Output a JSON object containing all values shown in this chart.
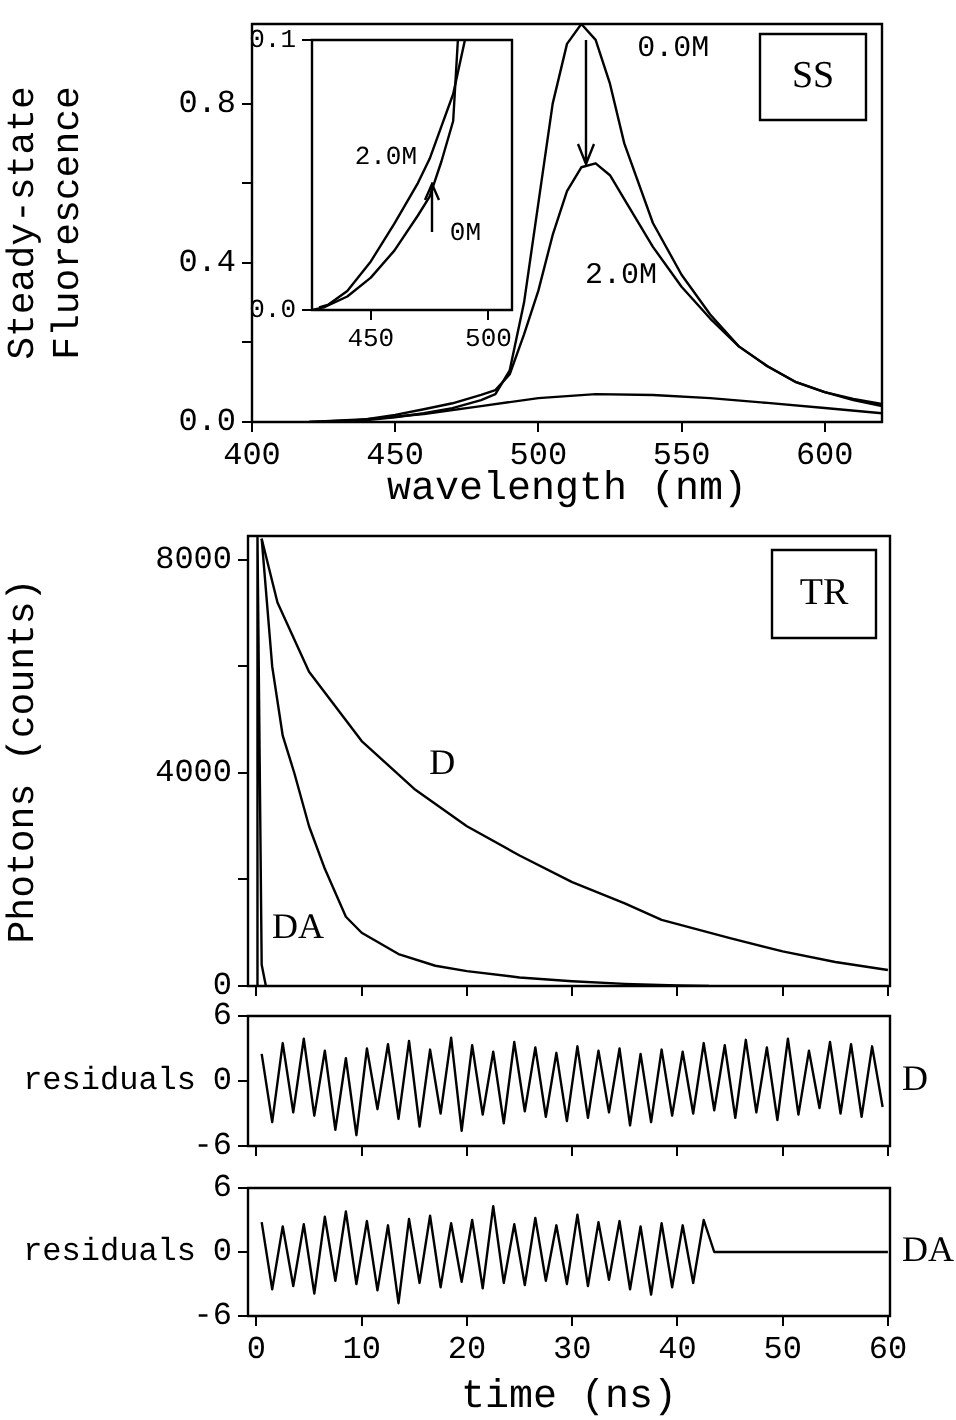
{
  "chart_data": [
    {
      "type": "line",
      "xlabel": "wavelength (nm)",
      "ylabel": "Steady-state Fluorescence",
      "xlim": [
        400,
        620
      ],
      "ylim": [
        0,
        1.0
      ],
      "xticks": [
        400,
        450,
        500,
        550,
        600
      ],
      "yticks": [
        {
          "value": 0,
          "label": "0.0"
        },
        {
          "value": 0.2,
          "label": null
        },
        {
          "value": 0.4,
          "label": "0.4"
        },
        {
          "value": 0.6,
          "label": null
        },
        {
          "value": 0.8,
          "label": "0.8"
        }
      ],
      "grid": false,
      "marker": "none",
      "line_style": "solid",
      "annotations": [
        "SS"
      ],
      "series": [
        {
          "name": "0.0M",
          "color": "#000000",
          "x": [
            420,
            440,
            450,
            460,
            470,
            480,
            485,
            490,
            495,
            500,
            505,
            510,
            515,
            520,
            525,
            530,
            540,
            550,
            560,
            570,
            580,
            590,
            600,
            610,
            620
          ],
          "values": [
            0,
            0.005,
            0.012,
            0.022,
            0.035,
            0.055,
            0.07,
            0.13,
            0.3,
            0.55,
            0.8,
            0.95,
            1.0,
            0.96,
            0.85,
            0.7,
            0.5,
            0.37,
            0.27,
            0.19,
            0.14,
            0.1,
            0.075,
            0.058,
            0.045
          ]
        },
        {
          "name": "2.0M",
          "color": "#000000",
          "x": [
            420,
            440,
            450,
            460,
            470,
            480,
            485,
            490,
            495,
            500,
            505,
            510,
            515,
            520,
            525,
            530,
            540,
            550,
            560,
            570,
            580,
            590,
            600,
            610,
            620
          ],
          "values": [
            0,
            0.007,
            0.018,
            0.032,
            0.047,
            0.068,
            0.08,
            0.12,
            0.22,
            0.33,
            0.47,
            0.58,
            0.64,
            0.65,
            0.62,
            0.56,
            0.44,
            0.34,
            0.26,
            0.19,
            0.14,
            0.1,
            0.075,
            0.055,
            0.04
          ]
        },
        {
          "color": "#000000",
          "x": [
            430,
            460,
            480,
            500,
            520,
            540,
            560,
            580,
            600,
            620
          ],
          "values": [
            0,
            0.02,
            0.04,
            0.06,
            0.07,
            0.068,
            0.06,
            0.048,
            0.035,
            0.022
          ]
        }
      ]
    },
    {
      "type": "line",
      "xlim": [
        425,
        510
      ],
      "ylim": [
        0,
        0.1
      ],
      "xticks": [
        450,
        500
      ],
      "yticks": [
        {
          "value": 0,
          "label": "0.0"
        },
        {
          "value": 0.1,
          "label": "0.1"
        }
      ],
      "grid": false,
      "marker": "none",
      "line_style": "solid",
      "series": [
        {
          "name": "0M",
          "color": "#000000",
          "x": [
            425,
            430,
            440,
            450,
            460,
            470,
            475,
            480,
            485,
            487
          ],
          "values": [
            0,
            0.001,
            0.005,
            0.012,
            0.022,
            0.035,
            0.042,
            0.055,
            0.07,
            0.1
          ]
        },
        {
          "name": "2.0M",
          "color": "#000000",
          "x": [
            428,
            432,
            440,
            450,
            460,
            470,
            475,
            480,
            485,
            490
          ],
          "values": [
            0.001,
            0.002,
            0.007,
            0.018,
            0.032,
            0.047,
            0.056,
            0.068,
            0.08,
            0.1
          ]
        }
      ]
    },
    {
      "type": "line",
      "ylabel": "Photons (counts)",
      "xlim": [
        -0.8,
        60.2
      ],
      "ylim": [
        0,
        8450
      ],
      "xticks": [
        0,
        10,
        20,
        30,
        40,
        50,
        60
      ],
      "yticks": [
        0,
        {
          "value": 2000,
          "label": null
        },
        4000,
        {
          "value": 6000,
          "label": null
        },
        8000
      ],
      "tick_labels": "y",
      "grid": false,
      "marker": "none",
      "line_style": "solid",
      "annotations": [
        "TR"
      ],
      "series": [
        {
          "name": "D",
          "color": "#000000",
          "x": [
            0.5,
            2,
            5,
            10,
            15,
            20,
            25,
            30,
            35,
            38.5,
            45,
            50,
            55,
            60
          ],
          "values": [
            8400,
            7200,
            5900,
            4600,
            3700,
            3000,
            2450,
            1950,
            1550,
            1240,
            900,
            650,
            450,
            300
          ]
        },
        {
          "name": "DA",
          "color": "#000000",
          "x": [
            0.5,
            1.5,
            2.5,
            3.6,
            5,
            6.5,
            8.5,
            10,
            13.5,
            17,
            20,
            25,
            30,
            35,
            40,
            43
          ],
          "values": [
            8400,
            6000,
            4700,
            4000,
            3000,
            2200,
            1300,
            1000,
            600,
            380,
            280,
            160,
            90,
            40,
            10,
            0
          ]
        },
        {
          "color": "#000000",
          "x": [
            0,
            0.1,
            0.5,
            0.9
          ],
          "values": [
            0,
            8450,
            400,
            0
          ]
        }
      ]
    },
    {
      "type": "line",
      "ylabel": "residuals",
      "xlim": [
        -0.8,
        60.2
      ],
      "ylim": [
        -6,
        6
      ],
      "xticks": [
        0,
        10,
        20,
        30,
        40,
        50,
        60
      ],
      "yticks": [
        -6,
        0,
        6
      ],
      "tick_labels": "y",
      "grid": false,
      "marker": "none",
      "line_style": "solid",
      "series": [
        {
          "name": "D",
          "color": "#000000",
          "x": [
            0.5,
            1.5,
            2.5,
            3.5,
            4.5,
            5.5,
            6.5,
            7.5,
            8.5,
            9.5,
            10.5,
            11.5,
            12.5,
            13.5,
            14.5,
            15.5,
            16.5,
            17.5,
            18.5,
            19.5,
            20.5,
            21.5,
            22.5,
            23.5,
            24.5,
            25.5,
            26.5,
            27.5,
            28.5,
            29.5,
            30.5,
            31.5,
            32.5,
            33.5,
            34.5,
            35.5,
            36.5,
            37.5,
            38.5,
            39.5,
            40.5,
            41.5,
            42.5,
            43.5,
            44.5,
            45.5,
            46.5,
            47.5,
            48.5,
            49.5,
            50.5,
            51.5,
            52.5,
            53.5,
            54.5,
            55.5,
            56.5,
            57.5,
            58.5,
            59.5
          ],
          "values": [
            2.5,
            -3.8,
            3.5,
            -2.9,
            3.9,
            -3.2,
            2.8,
            -4.5,
            2.1,
            -5,
            3.0,
            -2.6,
            3.4,
            -3.5,
            3.7,
            -4.2,
            2.9,
            -3.0,
            4.0,
            -4.6,
            3.3,
            -3.1,
            2.7,
            -3.9,
            3.6,
            -2.8,
            3.1,
            -3.3,
            2.6,
            -3.7,
            3.2,
            -3.4,
            2.8,
            -2.9,
            3.0,
            -4.1,
            2.5,
            -3.8,
            2.9,
            -3.2,
            2.7,
            -3.0,
            3.5,
            -2.7,
            3.3,
            -3.4,
            3.8,
            -2.9,
            3.1,
            -3.6,
            3.9,
            -3.1,
            2.8,
            -2.5,
            3.6,
            -3.0,
            3.4,
            -3.3,
            3.2,
            -2.4
          ]
        }
      ]
    },
    {
      "type": "line",
      "xlabel": "time (ns)",
      "ylabel": "residuals",
      "xlim": [
        -0.8,
        60.2
      ],
      "ylim": [
        -6,
        6
      ],
      "xticks": [
        0,
        10,
        20,
        30,
        40,
        50,
        60
      ],
      "yticks": [
        -6,
        0,
        6
      ],
      "grid": false,
      "marker": "none",
      "line_style": "solid",
      "series": [
        {
          "name": "DA",
          "color": "#000000",
          "x": [
            0.5,
            1.5,
            2.5,
            3.5,
            4.5,
            5.5,
            6.5,
            7.5,
            8.5,
            9.5,
            10.5,
            11.5,
            12.5,
            13.5,
            14.5,
            15.5,
            16.5,
            17.5,
            18.5,
            19.5,
            20.5,
            21.5,
            22.5,
            23.5,
            24.5,
            25.5,
            26.5,
            27.5,
            28.5,
            29.5,
            30.5,
            31.5,
            32.5,
            33.5,
            34.5,
            35.5,
            36.5,
            37.5,
            38.5,
            39.5,
            40.5,
            41.5,
            42.5,
            43.5,
            60
          ],
          "values": [
            2.8,
            -3.5,
            2.4,
            -3.2,
            2.6,
            -3.9,
            3.3,
            -2.7,
            3.8,
            -3.0,
            2.9,
            -3.6,
            2.5,
            -4.8,
            3.1,
            -2.9,
            3.4,
            -3.3,
            2.7,
            -2.8,
            3.0,
            -3.4,
            4.3,
            -2.9,
            2.6,
            -3.1,
            3.2,
            -2.7,
            2.5,
            -3.0,
            3.5,
            -3.2,
            2.8,
            -2.6,
            2.9,
            -3.5,
            2.4,
            -4.0,
            2.7,
            -3.3,
            2.5,
            -2.9,
            3.0,
            0,
            0
          ]
        }
      ]
    }
  ]
}
